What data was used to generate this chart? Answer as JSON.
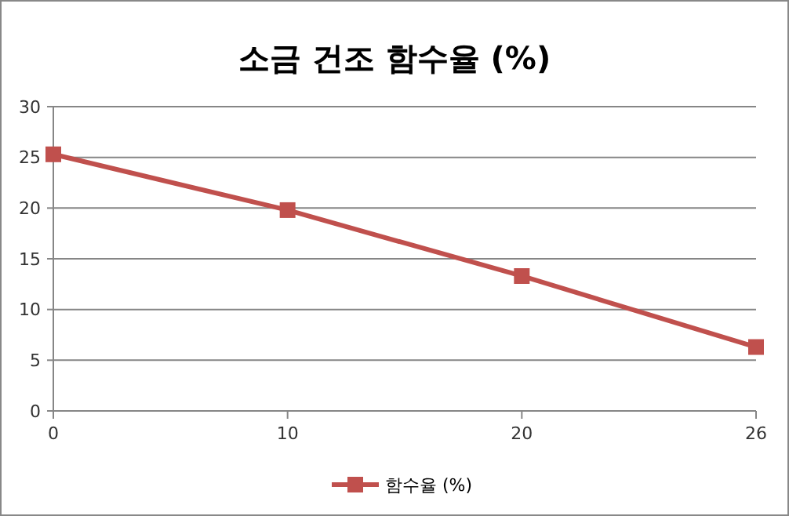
{
  "chart_data": {
    "type": "line",
    "title": "소금 건조 함수율 (%)",
    "categories": [
      "0",
      "10",
      "20",
      "26"
    ],
    "series": [
      {
        "name": "함수율 (%)",
        "color": "#c0504d",
        "values": [
          25.3,
          19.8,
          13.3,
          6.3
        ]
      }
    ],
    "ylim": [
      0,
      30
    ],
    "yticks": [
      0,
      5,
      10,
      15,
      20,
      25,
      30
    ],
    "grid": "y",
    "legend": "bottom",
    "marker": "square",
    "line_style": "solid"
  }
}
